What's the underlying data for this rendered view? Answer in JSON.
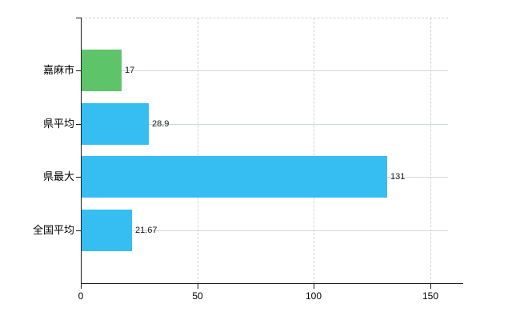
{
  "chart_data": {
    "type": "bar",
    "orientation": "horizontal",
    "title": "",
    "xlabel": "",
    "ylabel": "",
    "categories": [
      "嘉麻市",
      "県平均",
      "県最大",
      "全国平均"
    ],
    "values": [
      17,
      28.9,
      131,
      21.67
    ],
    "value_labels": [
      "17",
      "28.9",
      "131",
      "21.67"
    ],
    "bar_colors": [
      "#5dc46a",
      "#36bdf1",
      "#36bdf1",
      "#36bdf1"
    ],
    "xlim": [
      0,
      150
    ],
    "x_ticks": [
      0,
      50,
      100,
      150
    ],
    "x_tick_labels": [
      "0",
      "50",
      "100",
      "150"
    ],
    "grid": true,
    "legend": false
  },
  "colors": {
    "background": "#ffffff",
    "axis": "#1a1a1a",
    "gridline_horizontal": "#d1dbd1",
    "gridline_vertical": "#d4d0d8",
    "bar_green": "#5dc46a",
    "bar_blue": "#36bdf1",
    "text": "#000000"
  }
}
